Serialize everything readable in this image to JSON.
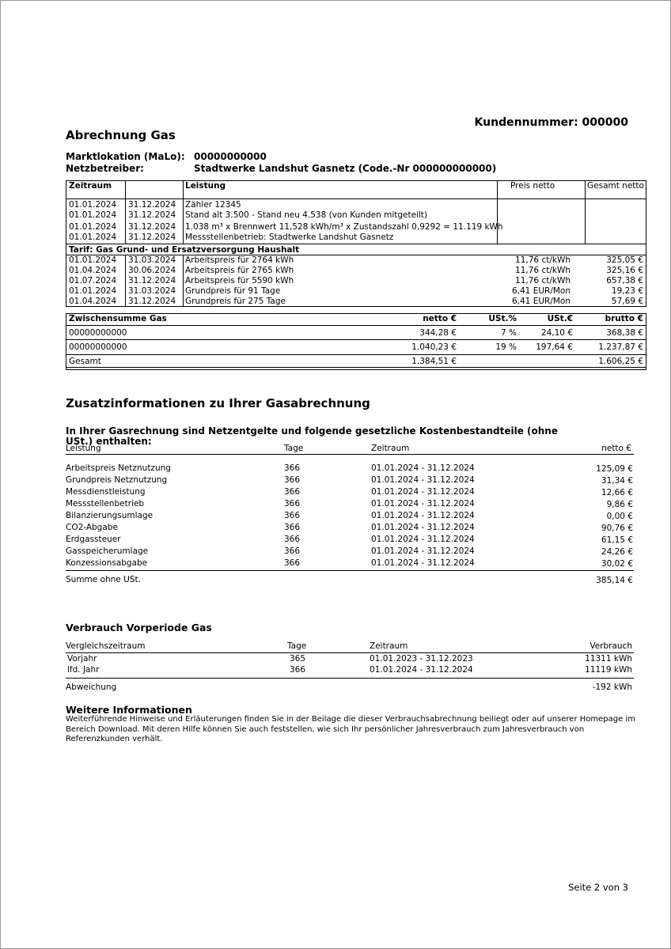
{
  "header": {
    "title": "Abrechnung Gas",
    "customer_number": "Kundennummer: 000000",
    "malo_label": "Marktlokation (MaLo):",
    "malo_value": "00000000000",
    "operator_label": "Netzbetreiber:",
    "operator_value": "Stadtwerke Landshut Gasnetz (Code.-Nr 000000000000)"
  },
  "billing_table": {
    "headers": [
      "Zeitraum",
      "Leistung",
      "Preis netto",
      "Gesamt netto"
    ],
    "meter_rows": [
      [
        "01.01.2024",
        "31.12.2024",
        "Zähler 12345"
      ],
      [
        "01.01.2024",
        "31.12.2024",
        "Stand alt 3.500 - Stand neu 4.538 (von Kunden mitgeteilt)"
      ],
      [
        "01.01.2024",
        "31.12.2024",
        "1.038 m³ x Brennwert 11,528 kWh/m³ x Zustandszahl 0,9292 = 11.119 kWh"
      ],
      [
        "01.01.2024",
        "31.12.2024",
        "Messstellenbetrieb: Stadtwerke Landshut Gasnetz"
      ]
    ],
    "tariff": "Tarif: Gas Grund- und Ersatzversorgung Haushalt",
    "rows": [
      [
        "01.01.2024",
        "31.03.2024",
        "Arbeitspreis für 2764 kWh",
        "11,76 ct/kWh",
        "325,05 €"
      ],
      [
        "01.04.2024",
        "30.06.2024",
        "Arbeitspreis für 2765 kWh",
        "11,76 ct/kWh",
        "325,16 €"
      ],
      [
        "01.07.2024",
        "31.12.2024",
        "Arbeitspreis für 5590 kWh",
        "11,76 ct/kWh",
        "657,38 €"
      ],
      [
        "01.01.2024",
        "31.03.2024",
        "Grundpreis für 91 Tage",
        "6,41 EUR/Mon",
        "19,23 €"
      ],
      [
        "01.04.2024",
        "31.12.2024",
        "Grundpreis für 275 Tage",
        "6,41 EUR/Mon",
        "57,69 €"
      ]
    ]
  },
  "summary_table": {
    "headers": [
      "Zwischensumme Gas",
      "netto €",
      "USt.%",
      "USt.€",
      "brutto €"
    ],
    "rows": [
      [
        "00000000000",
        "344,28 €",
        "7 %",
        "24,10 €",
        "368,38 €"
      ],
      [
        "00000000000",
        "1.040,23 €",
        "19 %",
        "197,64 €",
        "1.237,87 €"
      ]
    ],
    "total": [
      "Gesamt",
      "1.384,51 €",
      "1.606,25 €"
    ]
  },
  "additional_info": {
    "title": "Zusatzinformationen zu Ihrer  Gasabrechnung",
    "intro": "In Ihrer Gasrechnung sind Netzentgelte und folgende gesetzliche Kostenbestandteile (ohne USt.) enthalten:",
    "headers": [
      "Leistung",
      "Tage",
      "Zeitraum",
      "netto €"
    ],
    "rows": [
      [
        "Arbeitspreis Netznutzung",
        "366",
        "01.01.2024 - 31.12.2024",
        "125,09 €"
      ],
      [
        "Grundpreis Netznutzung",
        "366",
        "01.01.2024 - 31.12.2024",
        "31,34 €"
      ],
      [
        "Messdienstleistung",
        "366",
        "01.01.2024 - 31.12.2024",
        "12,66 €"
      ],
      [
        "Messstellenbetrieb",
        "366",
        "01.01.2024 - 31.12.2024",
        "9,86 €"
      ],
      [
        "Bilanzierungsumlage",
        "366",
        "01.01.2024 - 31.12.2024",
        "0,00 €"
      ],
      [
        "CO2-Abgabe",
        "366",
        "01.01.2024 - 31.12.2024",
        "90,76 €"
      ],
      [
        "Erdgassteuer",
        "366",
        "01.01.2024 - 31.12.2024",
        "61,15 €"
      ],
      [
        "Gasspeicherumlage",
        "366",
        "01.01.2024 - 31.12.2024",
        "24,26 €"
      ],
      [
        "Konzessionsabgabe",
        "366",
        "01.01.2024 - 31.12.2024",
        "30,02 €"
      ]
    ],
    "sum": [
      "Summe ohne USt.",
      "385,14 €"
    ]
  },
  "previous_consumption": {
    "title": "Verbrauch Vorperiode Gas",
    "headers": [
      "Vergleichszeitraum",
      "Tage",
      "Zeitraum",
      "Verbrauch"
    ],
    "rows": [
      [
        "Vorjahr",
        "365",
        "01.01.2023 - 31.12.2023",
        "11311  kWh"
      ],
      [
        "lfd. Jahr",
        "366",
        "01.01.2024 - 31.12.2024",
        "11119  kWh"
      ]
    ],
    "deviation": [
      "Abweichung",
      "-192  kWh"
    ]
  },
  "further_info": {
    "title": "Weitere Informationen",
    "text": "Weiterführende Hinweise und Erläuterungen finden Sie in der Beilage die dieser Verbrauchsabrechnung beiliegt oder auf unserer Homepage im Bereich Download. Mit deren Hilfe können Sie auch feststellen, wie sich Ihr persönlicher Jahresverbrauch zum Jahresverbrauch von Referenzkunden verhält."
  },
  "footer": {
    "page": "Seite 2 von 3"
  }
}
